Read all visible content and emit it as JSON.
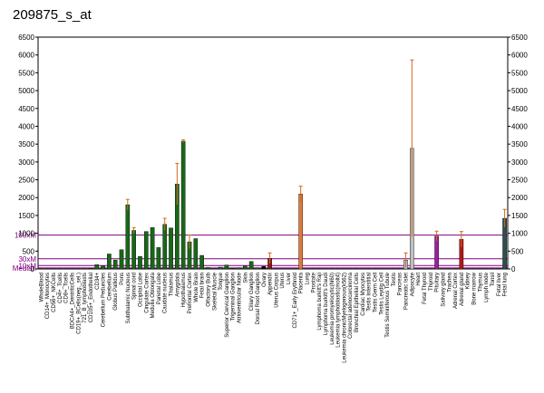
{
  "title": "209875_s_at",
  "chart_data": {
    "type": "bar",
    "title": "209875_s_at",
    "ylim": [
      0,
      6500
    ],
    "yticks": [
      0,
      500,
      1000,
      1500,
      2000,
      2500,
      3000,
      3500,
      4000,
      4500,
      5000,
      5500,
      6000,
      6500
    ],
    "reference_lines": [
      {
        "label": "100xM",
        "value": 950,
        "color": "#800080"
      },
      {
        "label": "30xM",
        "value": 285,
        "color": "#800080"
      },
      {
        "label": "10xM",
        "value": 95,
        "color": "#800080"
      },
      {
        "label": "Median",
        "value": 30,
        "color": "#800080"
      }
    ],
    "categories": [
      "WholeBlood",
      "CD14+_Monocytes",
      "CD56+_NKCells",
      "CD4+_Tcells",
      "CD8+_Tcells",
      "BDCA4+_DentriticCells",
      "CD19+_BCells(neg._sel.)",
      "721_B_lymphoblasts",
      "CD105+_Endothelial",
      "CD34+",
      "Cerebellum Peduncles",
      "Cerebellum",
      "Globus Pallidus",
      "Pons",
      "Subthalamic Nucleus",
      "Spinal cord",
      "Occipital Lobe",
      "Cingulate Cortex",
      "Medulla Oblongata",
      "Parietal Lobe",
      "Caudate nucleus",
      "Thalamus",
      "Amygdala",
      "Hypothalamus",
      "Prefrontal Cortex",
      "Whole Brain",
      "Fetal brain",
      "Olfactory Bulb",
      "Skeletal Muscle",
      "Tongue",
      "Superior Cervical Ganglion",
      "Trigeminal Ganglion",
      "Atrioventricular Node",
      "Skin",
      "Ciliary Ganglion",
      "Dorsal Root Ganglion",
      "Ovary",
      "Appendix",
      "Uterus Corpus",
      "Uterus",
      "Liver",
      "CD71+_Early Erythroid",
      "Placenta",
      "Lung",
      "Prostate",
      "Lymphoma burkitt's Raji",
      "Lymphoma burkitt's Daudi",
      "Leukemia promyelocytic(hl60)",
      "Leukemia lymphoblastic(molt4)",
      "Leukemia chronicMyelogenous(k562)",
      "Colorectal adenocarcinoma",
      "Bronchial Epithelial Cells",
      "Cardiac Myocytes",
      "Testis Interstitial",
      "Testis Germ Cell",
      "Testis Leydig Cell",
      "Testis Seminiferous Tubule",
      "Testis",
      "Pancreas",
      "Pancreatic Islet",
      "Adipocyte",
      "Heart",
      "Fetal Thyroid",
      "Thyroid",
      "Pituitary",
      "Salivary gland",
      "Trachea",
      "Adrenal Cortex",
      "Adrenal gland",
      "Kidney",
      "Bone marrow",
      "Thymus",
      "Lymph node",
      "Tonsil",
      "Fetal liver",
      "Fetal lung"
    ],
    "values": [
      10,
      10,
      10,
      10,
      10,
      10,
      10,
      10,
      20,
      120,
      80,
      420,
      250,
      540,
      1800,
      1080,
      350,
      1050,
      1160,
      600,
      1250,
      1150,
      2380,
      3580,
      760,
      850,
      380,
      40,
      10,
      50,
      110,
      20,
      30,
      80,
      210,
      30,
      70,
      300,
      10,
      10,
      10,
      10,
      2100,
      10,
      10,
      10,
      10,
      10,
      10,
      10,
      10,
      10,
      10,
      10,
      10,
      10,
      10,
      10,
      10,
      250,
      3380,
      10,
      10,
      10,
      920,
      10,
      10,
      10,
      830,
      10,
      10,
      10,
      10,
      10,
      10,
      1420
    ],
    "errors": [
      0,
      0,
      0,
      0,
      0,
      0,
      0,
      0,
      0,
      0,
      0,
      0,
      0,
      0,
      150,
      80,
      0,
      0,
      0,
      0,
      170,
      0,
      580,
      40,
      190,
      0,
      0,
      0,
      0,
      0,
      0,
      0,
      0,
      0,
      0,
      0,
      0,
      150,
      0,
      0,
      0,
      0,
      220,
      0,
      0,
      0,
      0,
      0,
      0,
      0,
      0,
      0,
      0,
      0,
      0,
      0,
      0,
      0,
      0,
      200,
      2480,
      0,
      0,
      0,
      140,
      0,
      0,
      0,
      220,
      0,
      0,
      0,
      0,
      0,
      0,
      250
    ],
    "bar_colors": [
      "#176817",
      "#176817",
      "#176817",
      "#176817",
      "#176817",
      "#176817",
      "#176817",
      "#176817",
      "#176817",
      "#176817",
      "#176817",
      "#176817",
      "#176817",
      "#176817",
      "#176817",
      "#176817",
      "#176817",
      "#176817",
      "#176817",
      "#176817",
      "#176817",
      "#176817",
      "#176817",
      "#176817",
      "#176817",
      "#176817",
      "#176817",
      "#176817",
      "#176817",
      "#176817",
      "#176817",
      "#176817",
      "#176817",
      "#176817",
      "#176817",
      "#176817",
      "#000000",
      "#8b1a1a",
      "#8b1a1a",
      "#8b1a1a",
      "#8b1a1a",
      "#e07b3a",
      "#e07b3a",
      "#e07b3a",
      "#e07b3a",
      "#e07b3a",
      "#e07b3a",
      "#e07b3a",
      "#e07b3a",
      "#e07b3a",
      "#e07b3a",
      "#e07b3a",
      "#e07b3a",
      "#e07b3a",
      "#e07b3a",
      "#e07b3a",
      "#e07b3a",
      "#c0c0c0",
      "#c0c0c0",
      "#c0c0c0",
      "#c0c0c0",
      "#c0c0c0",
      "#c0c0c0",
      "#c0c0c0",
      "#9b1f9b",
      "#9b1f9b",
      "#9b1f9b",
      "#9b1f9b",
      "#b01818",
      "#b01818",
      "#b01818",
      "#b01818",
      "#2f4f4f",
      "#2f4f4f",
      "#2f4f4f",
      "#2f4f4f"
    ],
    "error_color": "#d2691e",
    "xlabel": "",
    "ylabel": "",
    "ylabel_right": "",
    "grid": false
  }
}
